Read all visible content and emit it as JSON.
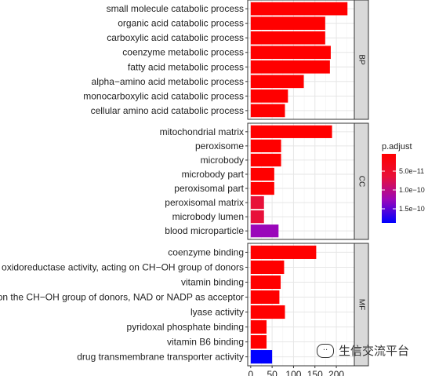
{
  "chart_data": {
    "type": "bar",
    "orientation": "horizontal",
    "facets": [
      {
        "strip": "BP",
        "categories": [
          "small molecule catabolic process",
          "organic acid catabolic process",
          "carboxylic acid catabolic process",
          "coenzyme metabolic process",
          "fatty acid metabolic process",
          "alpha−amino acid metabolic process",
          "monocarboxylic acid catabolic process",
          "cellular amino acid catabolic process"
        ],
        "values": [
          226,
          174,
          174,
          187,
          185,
          124,
          87,
          80
        ],
        "colors": [
          "#ff0000",
          "#ff0000",
          "#ff0000",
          "#ff0000",
          "#ff0000",
          "#ff0000",
          "#ff0000",
          "#ff0000"
        ]
      },
      {
        "strip": "CC",
        "categories": [
          "mitochondrial matrix",
          "peroxisome",
          "microbody",
          "microbody part",
          "peroxisomal part",
          "peroxisomal matrix",
          "microbody lumen",
          "blood microparticle"
        ],
        "values": [
          190,
          71,
          71,
          55,
          55,
          31,
          31,
          65
        ],
        "colors": [
          "#ff0000",
          "#ff0000",
          "#ff0000",
          "#ff0000",
          "#ff0000",
          "#e8103a",
          "#e8103a",
          "#9a07ba"
        ]
      },
      {
        "strip": "MF",
        "categories": [
          "coenzyme binding",
          "oxidoreductase activity, acting on CH−OH group of donors",
          "vitamin binding",
          "oxidoreductase activity, acting on the CH−OH group of donors, NAD or NADP as acceptor",
          "lyase activity",
          "pyridoxal phosphate binding",
          "vitamin B6 binding",
          "drug transmembrane transporter activity"
        ],
        "values": [
          153,
          78,
          70,
          67,
          80,
          37,
          37,
          50
        ],
        "colors": [
          "#ff0000",
          "#ff0000",
          "#ff0000",
          "#ff0000",
          "#ff0000",
          "#ff0000",
          "#ff0000",
          "#0000ff"
        ]
      }
    ],
    "x_ticks": [
      0,
      50,
      100,
      150,
      200
    ],
    "xlim": [
      -7,
      242
    ],
    "grid": true,
    "legend": {
      "title": "p.adjust",
      "position": "right",
      "ticks": [
        "5.0e−11",
        "1.0e−10",
        "1.5e−10"
      ],
      "gradient": [
        "#ff0000",
        "#e8103a",
        "#9a07ba",
        "#0000ff"
      ]
    }
  },
  "watermark": {
    "icon": "wechat-bubble-icon",
    "text": "生信交流平台"
  }
}
